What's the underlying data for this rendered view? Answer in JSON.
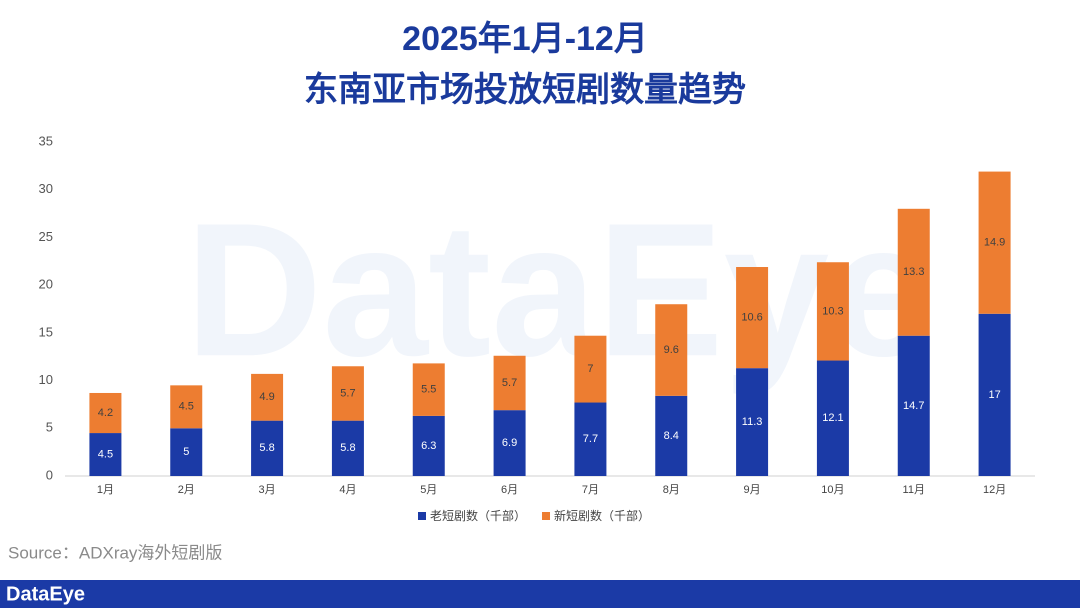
{
  "chart_data": {
    "type": "stacked_bar",
    "title": "2025年1月-12月",
    "subtitle": "东南亚市场投放短剧数量趋势",
    "categories": [
      "1月",
      "2月",
      "3月",
      "4月",
      "5月",
      "6月",
      "7月",
      "8月",
      "9月",
      "10月",
      "11月",
      "12月"
    ],
    "series": [
      {
        "name": "老短剧数（千部）",
        "color": "#1b3aa6",
        "values": [
          4.5,
          5,
          5.8,
          5.8,
          6.3,
          6.9,
          7.7,
          8.4,
          11.3,
          12.1,
          14.7,
          17
        ]
      },
      {
        "name": "新短剧数（千部）",
        "color": "#ed7d31",
        "values": [
          4.2,
          4.5,
          4.9,
          5.7,
          5.5,
          5.7,
          7,
          9.6,
          10.6,
          10.3,
          13.3,
          14.9
        ]
      }
    ],
    "ylim": [
      0,
      35
    ],
    "yticks": [
      0,
      5,
      10,
      15,
      20,
      25,
      30,
      35
    ],
    "grid": false,
    "legend": "bottom"
  },
  "source": "Source：ADXray海外短剧版",
  "watermark": "DataEye",
  "footer": {
    "logo": "DataEye"
  }
}
